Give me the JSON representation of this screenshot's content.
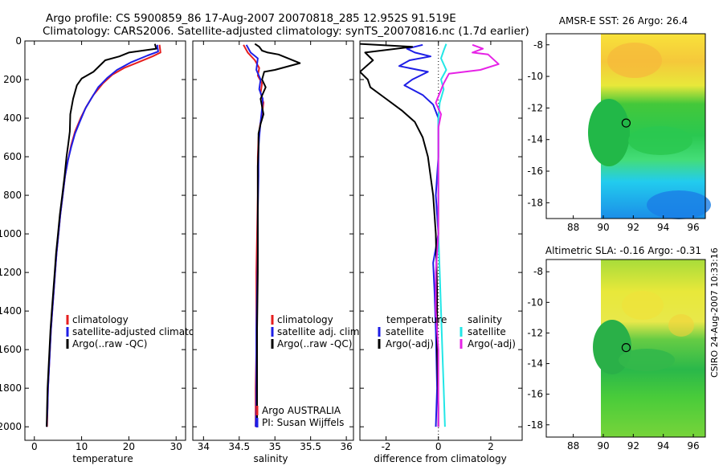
{
  "header": {
    "line1": "Argo profile: CS 5900859_86 17-Aug-2007 20070818_285 12.952S 91.519E",
    "line2": "Climatology: CARS2006. Satellite-adjusted climatology: synTS_20070816.nc (1.7d earlier)"
  },
  "colors": {
    "climatology": "#e61e1e",
    "satellite": "#1e1ee6",
    "argo": "#000000",
    "salinity_satellite": "#22e6e6",
    "salinity_argo": "#e622e6"
  },
  "chart_data": [
    {
      "type": "line",
      "id": "temperature",
      "xlabel": "temperature",
      "xlim": [
        -2,
        32
      ],
      "ylim": [
        2070,
        0
      ],
      "xticks": [
        0,
        10,
        20,
        30
      ],
      "yticks": [
        0,
        200,
        400,
        600,
        800,
        1000,
        1200,
        1400,
        1600,
        1800,
        2000
      ],
      "legend": [
        "climatology",
        "satellite-adjusted climatology",
        "Argo(..raw -QC)"
      ],
      "series": [
        {
          "name": "climatology",
          "color": "#e61e1e",
          "points": [
            [
              26.5,
              20
            ],
            [
              26.7,
              60
            ],
            [
              25,
              80
            ],
            [
              22,
              110
            ],
            [
              19,
              140
            ],
            [
              16.5,
              175
            ],
            [
              14.5,
              220
            ],
            [
              12.5,
              280
            ],
            [
              11,
              340
            ],
            [
              9.8,
              400
            ],
            [
              8.6,
              470
            ],
            [
              7.8,
              540
            ],
            [
              7.1,
              620
            ],
            [
              6.5,
              700
            ],
            [
              6,
              800
            ],
            [
              5.5,
              900
            ],
            [
              5.1,
              1000
            ],
            [
              4.7,
              1100
            ],
            [
              4.4,
              1200
            ],
            [
              4.1,
              1300
            ],
            [
              3.8,
              1400
            ],
            [
              3.5,
              1500
            ],
            [
              3.3,
              1600
            ],
            [
              3.1,
              1700
            ],
            [
              2.9,
              1800
            ],
            [
              2.8,
              1900
            ],
            [
              2.7,
              2000
            ]
          ]
        },
        {
          "name": "satellite-adjusted climatology",
          "color": "#1e1ee6",
          "points": [
            [
              26,
              20
            ],
            [
              26.2,
              55
            ],
            [
              24,
              75
            ],
            [
              20.5,
              110
            ],
            [
              17.5,
              150
            ],
            [
              15.5,
              190
            ],
            [
              13.5,
              240
            ],
            [
              12,
              300
            ],
            [
              10.8,
              350
            ],
            [
              9.6,
              420
            ],
            [
              8.6,
              480
            ],
            [
              7.8,
              550
            ],
            [
              7.1,
              620
            ],
            [
              6.5,
              700
            ],
            [
              6,
              800
            ],
            [
              5.5,
              900
            ],
            [
              5.1,
              1000
            ],
            [
              4.7,
              1100
            ],
            [
              4.4,
              1200
            ],
            [
              4.1,
              1300
            ],
            [
              3.8,
              1400
            ],
            [
              3.5,
              1500
            ],
            [
              3.3,
              1600
            ],
            [
              3.1,
              1700
            ],
            [
              2.9,
              1800
            ],
            [
              2.8,
              1900
            ],
            [
              2.6,
              2000
            ]
          ]
        },
        {
          "name": "Argo(..raw -QC)",
          "color": "#000000",
          "points": [
            [
              25.5,
              15
            ],
            [
              25.8,
              40
            ],
            [
              20,
              60
            ],
            [
              18,
              80
            ],
            [
              15,
              100
            ],
            [
              12.5,
              160
            ],
            [
              10,
              195
            ],
            [
              9,
              230
            ],
            [
              8.2,
              300
            ],
            [
              7.6,
              380
            ],
            [
              7.5,
              470
            ],
            [
              7.2,
              530
            ],
            [
              6.8,
              600
            ],
            [
              6.4,
              700
            ],
            [
              5.9,
              800
            ],
            [
              5.4,
              900
            ],
            [
              5,
              1000
            ],
            [
              4.6,
              1100
            ],
            [
              4.3,
              1200
            ],
            [
              4,
              1300
            ],
            [
              3.7,
              1400
            ],
            [
              3.4,
              1500
            ],
            [
              3.2,
              1600
            ],
            [
              3,
              1700
            ],
            [
              2.8,
              1800
            ],
            [
              2.7,
              1900
            ],
            [
              2.6,
              2000
            ]
          ]
        }
      ]
    },
    {
      "type": "line",
      "id": "salinity",
      "xlabel": "salinity",
      "xlim": [
        33.85,
        36.1
      ],
      "ylim": [
        2070,
        0
      ],
      "xticks": [
        34,
        34.5,
        35,
        35.5,
        36
      ],
      "legend": [
        "climatology",
        "satellite adj. clim.",
        "Argo(..raw -QC)"
      ],
      "annotation": [
        "Argo AUSTRALIA",
        "PI: Susan Wijffels"
      ],
      "series": [
        {
          "name": "climatology",
          "color": "#e61e1e",
          "points": [
            [
              34.56,
              20
            ],
            [
              34.62,
              60
            ],
            [
              34.72,
              100
            ],
            [
              34.78,
              140
            ],
            [
              34.76,
              180
            ],
            [
              34.82,
              220
            ],
            [
              34.8,
              270
            ],
            [
              34.84,
              320
            ],
            [
              34.82,
              380
            ],
            [
              34.79,
              440
            ],
            [
              34.77,
              500
            ],
            [
              34.76,
              600
            ],
            [
              34.76,
              800
            ],
            [
              34.75,
              1000
            ],
            [
              34.74,
              1200
            ],
            [
              34.74,
              1400
            ],
            [
              34.74,
              1600
            ],
            [
              34.73,
              1800
            ],
            [
              34.73,
              2000
            ]
          ]
        },
        {
          "name": "satellite adj. clim.",
          "color": "#1e1ee6",
          "points": [
            [
              34.6,
              20
            ],
            [
              34.66,
              60
            ],
            [
              34.76,
              90
            ],
            [
              34.74,
              150
            ],
            [
              34.8,
              200
            ],
            [
              34.78,
              250
            ],
            [
              34.83,
              300
            ],
            [
              34.82,
              350
            ],
            [
              34.8,
              420
            ],
            [
              34.78,
              500
            ],
            [
              34.77,
              560
            ],
            [
              34.77,
              700
            ],
            [
              34.76,
              900
            ],
            [
              34.76,
              1100
            ],
            [
              34.75,
              1300
            ],
            [
              34.74,
              1500
            ],
            [
              34.74,
              1700
            ],
            [
              34.74,
              1900
            ],
            [
              34.73,
              2000
            ]
          ]
        },
        {
          "name": "Argo(..raw -QC)",
          "color": "#000000",
          "points": [
            [
              34.72,
              15
            ],
            [
              34.78,
              30
            ],
            [
              34.82,
              50
            ],
            [
              34.9,
              60
            ],
            [
              35.05,
              70
            ],
            [
              35.35,
              115
            ],
            [
              35,
              150
            ],
            [
              34.85,
              160
            ],
            [
              34.82,
              200
            ],
            [
              34.87,
              240
            ],
            [
              34.8,
              300
            ],
            [
              34.84,
              380
            ],
            [
              34.8,
              430
            ],
            [
              34.77,
              480
            ],
            [
              34.77,
              560
            ],
            [
              34.76,
              650
            ],
            [
              34.76,
              900
            ],
            [
              34.76,
              1200
            ],
            [
              34.75,
              1500
            ],
            [
              34.75,
              1800
            ],
            [
              34.75,
              2000
            ]
          ]
        }
      ]
    },
    {
      "type": "line",
      "id": "difference",
      "xlabel": "difference from climatology",
      "xlim": [
        -3,
        3.2
      ],
      "ylim": [
        2070,
        0
      ],
      "xticks": [
        -2,
        0,
        2
      ],
      "legend_temperature": {
        "title": "temperature",
        "items": [
          "satellite",
          "Argo(-adj)"
        ]
      },
      "legend_salinity": {
        "title": "salinity",
        "items": [
          "satellite",
          "Argo(-adj)"
        ]
      },
      "series": [
        {
          "name": "temperature satellite",
          "color": "#1e1ee6",
          "points": [
            [
              -0.6,
              20
            ],
            [
              -1.2,
              40
            ],
            [
              -0.9,
              60
            ],
            [
              -0.3,
              80
            ],
            [
              -1.1,
              100
            ],
            [
              -1.5,
              130
            ],
            [
              -0.4,
              160
            ],
            [
              -1,
              200
            ],
            [
              -1.3,
              230
            ],
            [
              -0.6,
              280
            ],
            [
              -0.2,
              330
            ],
            [
              0,
              400
            ],
            [
              0,
              600
            ],
            [
              -0.1,
              800
            ],
            [
              0,
              1000
            ],
            [
              -0.2,
              1150
            ],
            [
              -0.15,
              1300
            ],
            [
              -0.1,
              1500
            ],
            [
              -0.05,
              1800
            ],
            [
              -0.1,
              2000
            ]
          ]
        },
        {
          "name": "temperature Argo(-adj)",
          "color": "#000000",
          "points": [
            [
              -3,
              15
            ],
            [
              -1,
              30
            ],
            [
              -2.8,
              60
            ],
            [
              -2.5,
              100
            ],
            [
              -3,
              160
            ],
            [
              -2.7,
              200
            ],
            [
              -2.6,
              240
            ],
            [
              -2,
              300
            ],
            [
              -1.4,
              360
            ],
            [
              -0.9,
              420
            ],
            [
              -0.6,
              500
            ],
            [
              -0.4,
              600
            ],
            [
              -0.2,
              800
            ],
            [
              -0.1,
              1000
            ],
            [
              -0.05,
              1300
            ],
            [
              -0.05,
              1600
            ],
            [
              0,
              1900
            ],
            [
              0,
              2000
            ]
          ]
        },
        {
          "name": "salinity satellite",
          "color": "#22e6e6",
          "points": [
            [
              0.3,
              15
            ],
            [
              0.2,
              50
            ],
            [
              0.1,
              90
            ],
            [
              0.3,
              150
            ],
            [
              0.1,
              200
            ],
            [
              0.2,
              250
            ],
            [
              0.05,
              320
            ],
            [
              0,
              400
            ],
            [
              0,
              600
            ],
            [
              0,
              800
            ],
            [
              0,
              1000
            ],
            [
              0.05,
              1200
            ],
            [
              0.1,
              1400
            ],
            [
              0.15,
              1600
            ],
            [
              0.2,
              1800
            ],
            [
              0.25,
              2000
            ]
          ]
        },
        {
          "name": "salinity Argo(-adj)",
          "color": "#e622e6",
          "points": [
            [
              1.3,
              20
            ],
            [
              1.7,
              40
            ],
            [
              1.3,
              60
            ],
            [
              1.9,
              70
            ],
            [
              2.3,
              120
            ],
            [
              1.6,
              150
            ],
            [
              0.4,
              170
            ],
            [
              0.2,
              220
            ],
            [
              -0.1,
              320
            ],
            [
              0.1,
              380
            ],
            [
              0,
              450
            ],
            [
              0,
              550
            ],
            [
              0,
              650
            ],
            [
              0,
              800
            ],
            [
              0,
              1000
            ],
            [
              -0.1,
              1200
            ],
            [
              -0.1,
              1400
            ],
            [
              0,
              1600
            ],
            [
              0,
              1800
            ],
            [
              0,
              2000
            ]
          ]
        }
      ]
    },
    {
      "type": "heatmap",
      "id": "amsr-sst",
      "title": "AMSR-E SST: 26 Argo: 26.4",
      "xlim": [
        86.2,
        96.8
      ],
      "ylim": [
        -19,
        -7.3
      ],
      "xticks": [
        88,
        90,
        92,
        94,
        96
      ],
      "yticks": [
        -8,
        -10,
        -12,
        -14,
        -16,
        -18
      ],
      "data_lon_range": [
        90,
        96.8
      ],
      "marker": {
        "lon": 91.519,
        "lat": -12.952
      }
    },
    {
      "type": "heatmap",
      "id": "altimetric-sla",
      "title": "Altimetric SLA: -0.16 Argo: -0.31",
      "xlim": [
        86.2,
        96.8
      ],
      "ylim": [
        -18.8,
        -7.2
      ],
      "xticks": [
        88,
        90,
        92,
        94,
        96
      ],
      "yticks": [
        -8,
        -10,
        -12,
        -14,
        -16,
        -18
      ],
      "data_lon_range": [
        90,
        96.8
      ],
      "marker": {
        "lon": 91.519,
        "lat": -12.952
      }
    }
  ],
  "footer": {
    "side_label": "CSIRO 24-Aug-2007 10:33:16"
  }
}
